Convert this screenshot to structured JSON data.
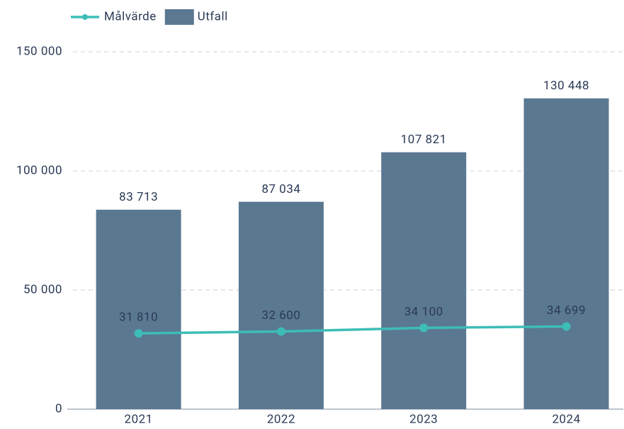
{
  "chart_data": {
    "type": "bar",
    "categories": [
      "2021",
      "2022",
      "2023",
      "2024"
    ],
    "series": [
      {
        "name": "Målvärde",
        "type": "line",
        "color": "#3dbdb8",
        "values": [
          31810,
          32600,
          34100,
          34699
        ],
        "value_labels": [
          "31 810",
          "32 600",
          "34 100",
          "34 699"
        ]
      },
      {
        "name": "Utfall",
        "type": "bar",
        "color": "#5b7891",
        "values": [
          83713,
          87034,
          107821,
          130448
        ],
        "value_labels": [
          "83 713",
          "87 034",
          "107 821",
          "130 448"
        ]
      }
    ],
    "ylim": [
      0,
      150000
    ],
    "yticks": [
      0,
      {
        "value": 50000,
        "label": "50 000"
      },
      {
        "value": 100000,
        "label": "100 000"
      },
      {
        "value": 150000,
        "label": "150 000"
      }
    ],
    "grid": true,
    "legend": "top-left"
  }
}
